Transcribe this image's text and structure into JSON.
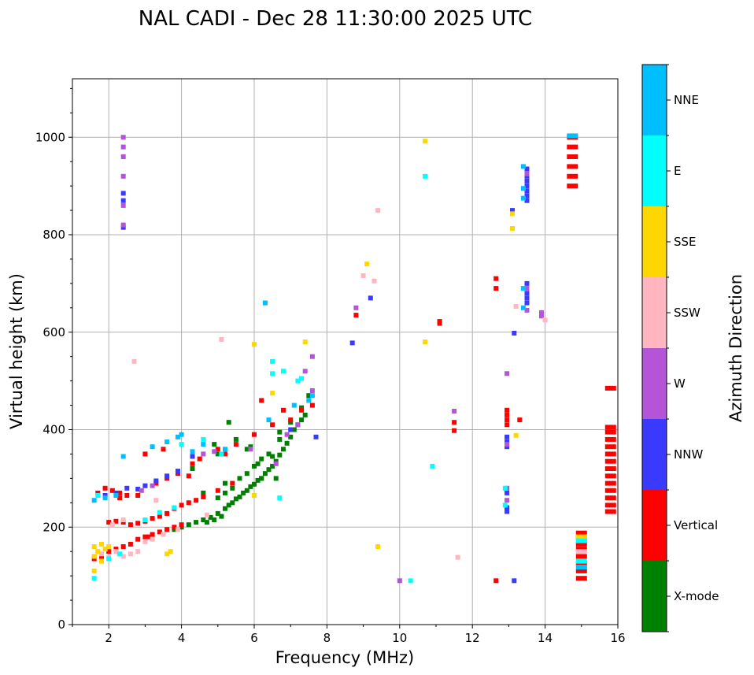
{
  "chart_data": {
    "type": "scatter",
    "title": "NAL CADI - Dec 28 11:30:00 2025 UTC",
    "xlabel": "Frequency (MHz)",
    "ylabel": "Virtual height (km)",
    "xlim": [
      1,
      16
    ],
    "ylim": [
      0,
      1120
    ],
    "xticks": [
      2,
      4,
      6,
      8,
      10,
      12,
      14,
      16
    ],
    "yticks": [
      0,
      200,
      400,
      600,
      800,
      1000
    ],
    "grid": true,
    "colorbar": {
      "title": "Azimuth Direction",
      "categories": [
        "X-mode",
        "Vertical",
        "NNW",
        "W",
        "SSW",
        "SSE",
        "E",
        "NNE"
      ],
      "colors": [
        "#008000",
        "#ff0000",
        "#3a3aff",
        "#b455d8",
        "#ffb6c1",
        "#ffd700",
        "#00ffff",
        "#00bfff"
      ]
    },
    "series": [
      {
        "name": "X-mode",
        "points": [
          [
            4.2,
            205
          ],
          [
            4.4,
            210
          ],
          [
            4.6,
            215
          ],
          [
            4.8,
            220
          ],
          [
            5.0,
            228
          ],
          [
            5.2,
            238
          ],
          [
            5.4,
            250
          ],
          [
            5.6,
            262
          ],
          [
            5.8,
            275
          ],
          [
            6.0,
            288
          ],
          [
            6.2,
            300
          ],
          [
            6.4,
            318
          ],
          [
            6.6,
            335
          ],
          [
            6.8,
            360
          ],
          [
            7.0,
            385
          ],
          [
            7.2,
            410
          ],
          [
            7.4,
            430
          ],
          [
            3.8,
            195
          ],
          [
            4.0,
            200
          ],
          [
            4.9,
            215
          ],
          [
            5.1,
            222
          ],
          [
            5.3,
            245
          ],
          [
            5.5,
            258
          ],
          [
            5.7,
            270
          ],
          [
            5.9,
            283
          ],
          [
            6.1,
            296
          ],
          [
            6.3,
            310
          ],
          [
            6.5,
            325
          ],
          [
            6.7,
            348
          ],
          [
            6.9,
            372
          ],
          [
            7.1,
            400
          ],
          [
            7.3,
            420
          ],
          [
            4.7,
            210
          ],
          [
            5.0,
            260
          ],
          [
            5.2,
            270
          ],
          [
            5.4,
            280
          ],
          [
            5.6,
            300
          ],
          [
            5.8,
            310
          ],
          [
            6.0,
            325
          ],
          [
            6.2,
            340
          ],
          [
            6.5,
            345
          ],
          [
            6.7,
            380
          ],
          [
            7.0,
            415
          ],
          [
            7.3,
            445
          ],
          [
            5.5,
            380
          ],
          [
            5.8,
            360
          ],
          [
            6.1,
            330
          ],
          [
            6.4,
            350
          ],
          [
            6.6,
            300
          ],
          [
            5.2,
            290
          ],
          [
            4.6,
            270
          ],
          [
            5.9,
            365
          ],
          [
            6.7,
            395
          ],
          [
            5.0,
            350
          ],
          [
            4.3,
            320
          ],
          [
            4.9,
            370
          ],
          [
            7.5,
            470
          ],
          [
            5.3,
            415
          ],
          [
            6.2,
            300
          ]
        ]
      },
      {
        "name": "Vertical",
        "points": [
          [
            1.6,
            135
          ],
          [
            1.8,
            140
          ],
          [
            2.0,
            150
          ],
          [
            2.2,
            155
          ],
          [
            2.4,
            160
          ],
          [
            2.6,
            165
          ],
          [
            2.8,
            175
          ],
          [
            3.0,
            180
          ],
          [
            3.2,
            185
          ],
          [
            3.4,
            190
          ],
          [
            3.6,
            195
          ],
          [
            3.8,
            200
          ],
          [
            4.0,
            205
          ],
          [
            2.0,
            210
          ],
          [
            2.2,
            212
          ],
          [
            2.4,
            210
          ],
          [
            2.6,
            205
          ],
          [
            2.8,
            208
          ],
          [
            3.0,
            212
          ],
          [
            3.2,
            218
          ],
          [
            3.4,
            222
          ],
          [
            3.6,
            228
          ],
          [
            3.8,
            238
          ],
          [
            4.0,
            245
          ],
          [
            4.2,
            250
          ],
          [
            4.4,
            255
          ],
          [
            4.6,
            262
          ],
          [
            5.0,
            275
          ],
          [
            5.4,
            290
          ],
          [
            1.7,
            270
          ],
          [
            1.9,
            280
          ],
          [
            2.1,
            275
          ],
          [
            2.3,
            270
          ],
          [
            2.5,
            265
          ],
          [
            3.3,
            290
          ],
          [
            3.6,
            300
          ],
          [
            3.9,
            310
          ],
          [
            4.2,
            305
          ],
          [
            4.5,
            340
          ],
          [
            5.0,
            360
          ],
          [
            5.5,
            370
          ],
          [
            6.0,
            390
          ],
          [
            6.5,
            410
          ],
          [
            7.0,
            420
          ],
          [
            7.3,
            440
          ],
          [
            3.0,
            350
          ],
          [
            3.5,
            360
          ],
          [
            4.3,
            330
          ],
          [
            5.2,
            350
          ],
          [
            6.2,
            460
          ],
          [
            6.8,
            440
          ],
          [
            7.6,
            450
          ],
          [
            2.3,
            260
          ],
          [
            2.8,
            265
          ],
          [
            3.1,
            180
          ],
          [
            8.8,
            635
          ],
          [
            11.1,
            618
          ],
          [
            11.1,
            622
          ],
          [
            11.5,
            415
          ],
          [
            11.5,
            398
          ],
          [
            12.65,
            710
          ],
          [
            12.65,
            690
          ],
          [
            12.65,
            90
          ],
          [
            12.95,
            440
          ],
          [
            12.95,
            430
          ],
          [
            12.95,
            420
          ],
          [
            12.95,
            410
          ],
          [
            13.3,
            420
          ],
          [
            14.75,
            900
          ],
          [
            14.75,
            920
          ],
          [
            14.75,
            940
          ],
          [
            14.75,
            960
          ],
          [
            14.75,
            980
          ],
          [
            14.75,
            1000
          ],
          [
            15.0,
            95
          ],
          [
            15.0,
            110
          ],
          [
            15.0,
            125
          ],
          [
            15.0,
            140
          ],
          [
            15.0,
            155
          ],
          [
            15.0,
            165
          ],
          [
            15.0,
            178
          ],
          [
            15.0,
            188
          ],
          [
            15.8,
            485
          ],
          [
            15.8,
            405
          ],
          [
            15.8,
            395
          ],
          [
            15.8,
            380
          ],
          [
            15.8,
            365
          ],
          [
            15.8,
            350
          ],
          [
            15.8,
            335
          ],
          [
            15.8,
            320
          ],
          [
            15.8,
            305
          ],
          [
            15.8,
            290
          ],
          [
            15.8,
            275
          ],
          [
            15.8,
            260
          ],
          [
            15.8,
            245
          ],
          [
            15.8,
            232
          ]
        ]
      },
      {
        "name": "NNW",
        "points": [
          [
            2.4,
            815
          ],
          [
            2.4,
            870
          ],
          [
            2.4,
            885
          ],
          [
            1.9,
            265
          ],
          [
            2.2,
            270
          ],
          [
            2.5,
            280
          ],
          [
            2.8,
            278
          ],
          [
            3.0,
            285
          ],
          [
            3.3,
            295
          ],
          [
            3.6,
            305
          ],
          [
            3.9,
            315
          ],
          [
            4.3,
            345
          ],
          [
            7.0,
            400
          ],
          [
            7.7,
            385
          ],
          [
            9.2,
            670
          ],
          [
            8.7,
            578
          ],
          [
            12.95,
            385
          ],
          [
            12.95,
            375
          ],
          [
            12.95,
            365
          ],
          [
            12.95,
            270
          ],
          [
            12.95,
            240
          ],
          [
            12.95,
            232
          ],
          [
            13.15,
            598
          ],
          [
            13.15,
            90
          ],
          [
            13.1,
            850
          ],
          [
            13.5,
            870
          ],
          [
            13.5,
            880
          ],
          [
            13.5,
            890
          ],
          [
            13.5,
            900
          ],
          [
            13.5,
            910
          ],
          [
            13.5,
            920
          ],
          [
            13.5,
            935
          ],
          [
            13.5,
            660
          ],
          [
            13.5,
            670
          ],
          [
            13.5,
            680
          ],
          [
            13.5,
            700
          ]
        ]
      },
      {
        "name": "W",
        "points": [
          [
            2.4,
            820
          ],
          [
            2.4,
            860
          ],
          [
            2.4,
            920
          ],
          [
            2.4,
            960
          ],
          [
            2.4,
            980
          ],
          [
            2.4,
            1000
          ],
          [
            2.9,
            275
          ],
          [
            3.2,
            285
          ],
          [
            4.6,
            350
          ],
          [
            4.9,
            355
          ],
          [
            5.9,
            360
          ],
          [
            6.6,
            330
          ],
          [
            6.9,
            390
          ],
          [
            7.2,
            410
          ],
          [
            7.6,
            480
          ],
          [
            7.4,
            520
          ],
          [
            7.6,
            550
          ],
          [
            8.8,
            650
          ],
          [
            10.0,
            90
          ],
          [
            11.5,
            438
          ],
          [
            12.95,
            515
          ],
          [
            12.95,
            370
          ],
          [
            12.95,
            280
          ],
          [
            12.95,
            255
          ],
          [
            13.5,
            645
          ],
          [
            13.5,
            690
          ],
          [
            13.5,
            925
          ],
          [
            13.9,
            633
          ],
          [
            13.9,
            640
          ]
        ]
      },
      {
        "name": "SSW",
        "points": [
          [
            1.8,
            145
          ],
          [
            2.0,
            138
          ],
          [
            2.2,
            150
          ],
          [
            2.4,
            140
          ],
          [
            2.6,
            145
          ],
          [
            2.8,
            150
          ],
          [
            3.0,
            170
          ],
          [
            3.2,
            175
          ],
          [
            3.5,
            185
          ],
          [
            3.9,
            195
          ],
          [
            2.1,
            205
          ],
          [
            2.4,
            215
          ],
          [
            3.3,
            255
          ],
          [
            4.7,
            225
          ],
          [
            5.1,
            585
          ],
          [
            2.7,
            540
          ],
          [
            9.0,
            716
          ],
          [
            9.3,
            705
          ],
          [
            9.4,
            850
          ],
          [
            11.6,
            138
          ],
          [
            13.2,
            653
          ],
          [
            14.0,
            625
          ],
          [
            15.0,
            150
          ]
        ]
      },
      {
        "name": "SSE",
        "points": [
          [
            1.6,
            160
          ],
          [
            1.7,
            150
          ],
          [
            1.8,
            165
          ],
          [
            1.9,
            155
          ],
          [
            2.0,
            160
          ],
          [
            1.6,
            140
          ],
          [
            1.8,
            130
          ],
          [
            1.6,
            110
          ],
          [
            3.6,
            145
          ],
          [
            3.7,
            150
          ],
          [
            6.0,
            265
          ],
          [
            6.0,
            575
          ],
          [
            6.5,
            475
          ],
          [
            7.4,
            580
          ],
          [
            9.1,
            740
          ],
          [
            9.4,
            160
          ],
          [
            10.7,
            992
          ],
          [
            10.7,
            580
          ],
          [
            13.1,
            813
          ],
          [
            13.1,
            843
          ],
          [
            13.2,
            388
          ],
          [
            15.0,
            180
          ]
        ]
      },
      {
        "name": "E",
        "points": [
          [
            1.6,
            95
          ],
          [
            1.7,
            265
          ],
          [
            2.0,
            135
          ],
          [
            2.3,
            145
          ],
          [
            3.0,
            215
          ],
          [
            3.4,
            230
          ],
          [
            3.8,
            240
          ],
          [
            4.0,
            370
          ],
          [
            4.6,
            380
          ],
          [
            5.1,
            350
          ],
          [
            6.5,
            515
          ],
          [
            6.5,
            540
          ],
          [
            6.8,
            520
          ],
          [
            7.2,
            500
          ],
          [
            7.3,
            505
          ],
          [
            6.7,
            260
          ],
          [
            6.3,
            660
          ],
          [
            10.3,
            90
          ],
          [
            10.7,
            920
          ],
          [
            10.9,
            325
          ],
          [
            12.9,
            280
          ],
          [
            12.9,
            245
          ],
          [
            15.0,
            172
          ],
          [
            15.0,
            130
          ]
        ]
      },
      {
        "name": "NNE",
        "points": [
          [
            1.6,
            255
          ],
          [
            1.9,
            260
          ],
          [
            2.2,
            265
          ],
          [
            2.4,
            345
          ],
          [
            3.2,
            365
          ],
          [
            3.6,
            375
          ],
          [
            3.9,
            385
          ],
          [
            4.0,
            390
          ],
          [
            4.3,
            355
          ],
          [
            4.6,
            370
          ],
          [
            5.2,
            360
          ],
          [
            6.3,
            660
          ],
          [
            6.4,
            420
          ],
          [
            7.1,
            450
          ],
          [
            7.5,
            460
          ],
          [
            7.6,
            470
          ],
          [
            13.4,
            875
          ],
          [
            13.4,
            895
          ],
          [
            13.4,
            940
          ],
          [
            13.4,
            690
          ],
          [
            13.4,
            650
          ],
          [
            15.0,
            118
          ],
          [
            14.75,
            1003
          ]
        ]
      }
    ]
  }
}
